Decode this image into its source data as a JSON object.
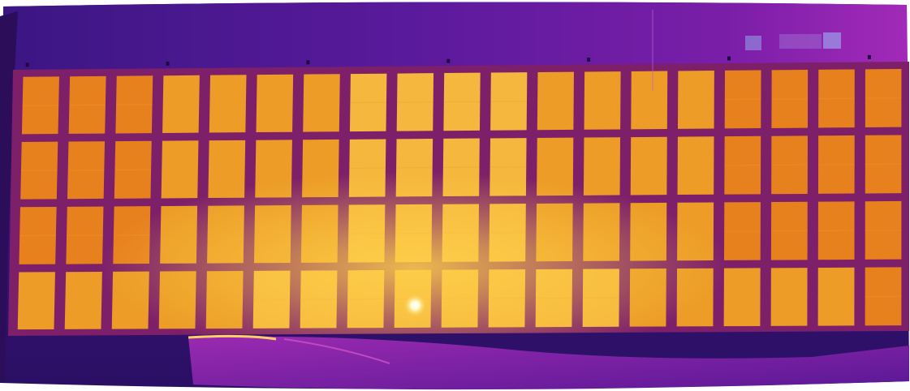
{
  "image": {
    "kind": "aerial-thermal-photo",
    "subject": "solar-panel-array",
    "palette": "ironbow",
    "panel_grid": {
      "rows": 4,
      "columns": 19
    },
    "hotspots": [
      {
        "row": 4,
        "column": 9,
        "note": "bright-hotspot"
      }
    ],
    "colors": {
      "background_dark": "#2a0f63",
      "background_purple": "#6a1aa6",
      "frame": "#7e1f6a",
      "panel_cool": "#f08a18",
      "panel_mid": "#f5a722",
      "panel_warm": "#ffc43a",
      "hotspot": "#fffbd6"
    }
  }
}
